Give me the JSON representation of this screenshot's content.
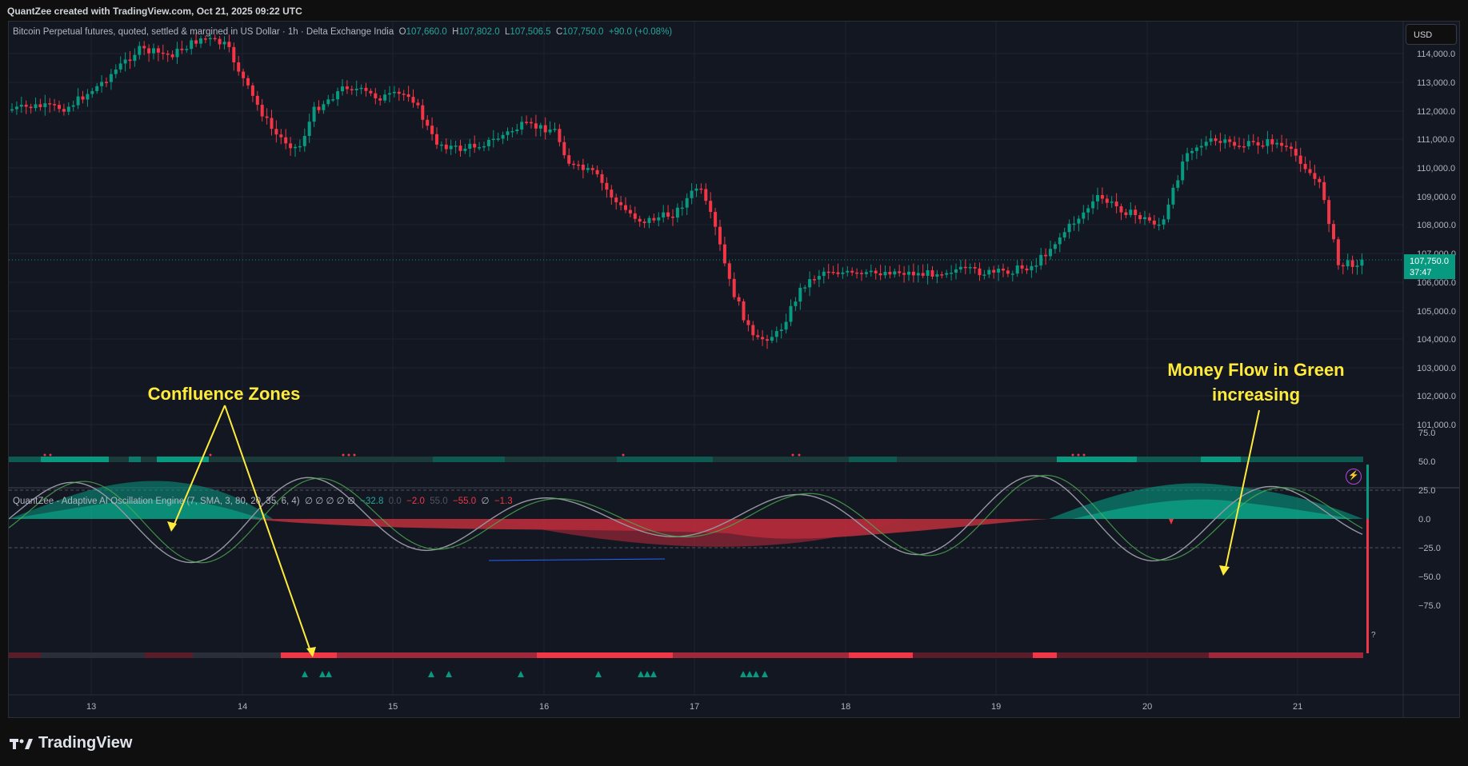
{
  "header": {
    "credit": "QuantZee created with TradingView.com, Oct 21, 2025 09:22 UTC"
  },
  "main_legend": {
    "symbol_desc": "Bitcoin Perpetual futures, quoted, settled & margined in US Dollar · 1h · Delta Exchange India",
    "open_label": "O",
    "open": "107,660.0",
    "high_label": "H",
    "high": "107,802.0",
    "low_label": "L",
    "low": "107,506.5",
    "close_label": "C",
    "close": "107,750.0",
    "change": "+90.0 (+0.08%)"
  },
  "currency_button": "USD",
  "last_price": {
    "price": "107,750.0",
    "countdown": "37:47"
  },
  "price_axis": [
    "114,000.0",
    "113,000.0",
    "112,000.0",
    "111,000.0",
    "110,000.0",
    "109,000.0",
    "108,000.0",
    "107,000.0",
    "106,000.0",
    "105,000.0",
    "104,000.0",
    "103,000.0",
    "102,000.0",
    "101,000.0"
  ],
  "indicator_legend": {
    "name": "QuantZee - Adaptive AI Oscillation Engine (7, SMA, 3, 80, 20, 35, 6, 4)",
    "empties": "∅ ∅ ∅ ∅ ∅",
    "v1": "−32.8",
    "v2": "0.0",
    "v3": "−2.0",
    "v4": "55.0",
    "v5": "−55.0",
    "v6": "∅",
    "v7": "−1.3"
  },
  "osc_axis": [
    "75.0",
    "50.0",
    "25.0",
    "0.0",
    "−25.0",
    "−50.0",
    "−75.0"
  ],
  "osc_question": "?",
  "time_axis": [
    "13",
    "14",
    "15",
    "16",
    "17",
    "18",
    "19",
    "20",
    "21"
  ],
  "annotations": {
    "confluence": "Confluence Zones",
    "money_flow_line1": "Money Flow in Green",
    "money_flow_line2": "increasing"
  },
  "footer": {
    "brand": "TradingView"
  },
  "colors": {
    "up": "#089981",
    "down": "#f23645",
    "bg": "#131722",
    "annotation": "#ffeb3b"
  },
  "icons": {
    "alert": "lightning-icon",
    "brand": "tradingview-logo-icon"
  }
}
